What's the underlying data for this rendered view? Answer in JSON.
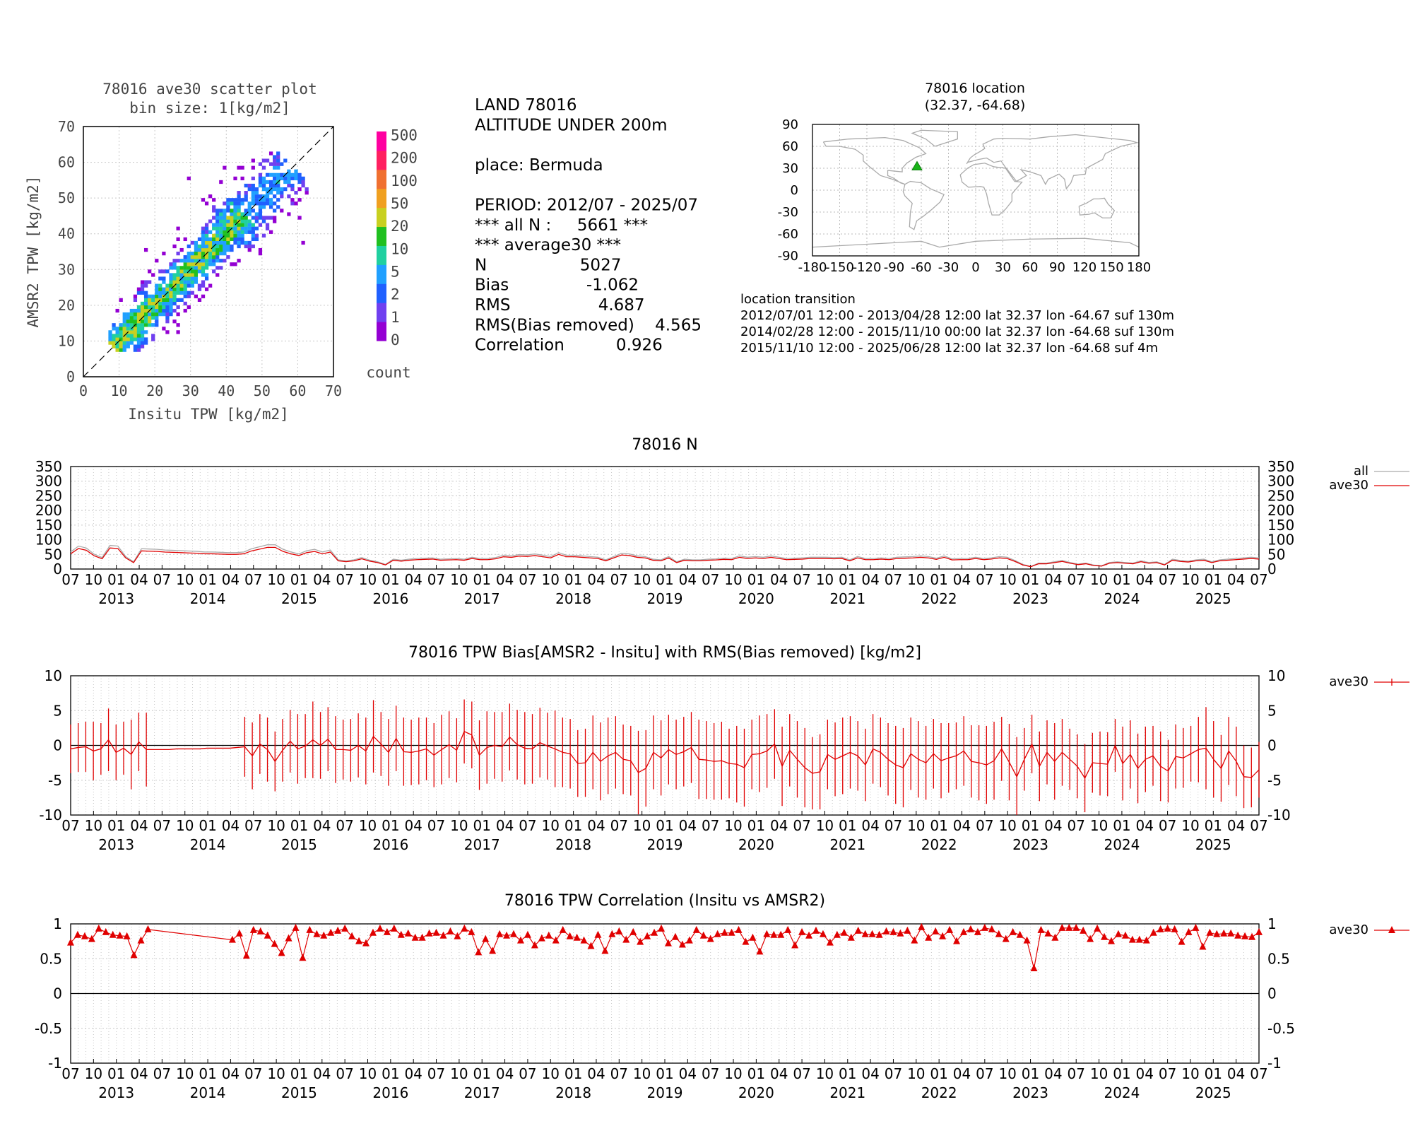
{
  "station": "78016",
  "scatter": {
    "title": "78016 ave30 scatter plot",
    "subtitle": "bin size: 1[kg/m2]",
    "xlabel": "Insitu TPW [kg/m2]",
    "ylabel": "AMSR2 TPW [kg/m2]",
    "ticks": [
      "0",
      "10",
      "20",
      "30",
      "40",
      "50",
      "60",
      "70"
    ],
    "colorbar_labels": [
      "0",
      "1",
      "2",
      "5",
      "10",
      "20",
      "50",
      "100",
      "200",
      "500"
    ],
    "colorbar_colors": [
      "#9400d3",
      "#7040f0",
      "#2060ff",
      "#20a0ff",
      "#20d0a0",
      "#20c020",
      "#c8d020",
      "#f0a020",
      "#f07030",
      "#ff2060",
      "#ff00a0"
    ],
    "colorbar_title": "count"
  },
  "info": {
    "lines": [
      "LAND 78016",
      "ALTITUDE UNDER 200m",
      "",
      "place: Bermuda",
      "",
      "PERIOD: 2012/07 - 2025/07",
      "*** all N :     5661 ***",
      "*** average30 ***",
      "N                  5027",
      "Bias               -1.062",
      "RMS                 4.687",
      "RMS(Bias removed)    4.565",
      "Correlation          0.926"
    ]
  },
  "location": {
    "title": "78016 location",
    "subtitle": "(32.37, -64.68)",
    "lat": 32.37,
    "lon": -64.68,
    "yticks": [
      "90",
      "60",
      "30",
      "0",
      "-30",
      "-60",
      "-90"
    ],
    "xticks": [
      "-180",
      "-150",
      "-120",
      "-90",
      "-60",
      "-30",
      "0",
      "30",
      "60",
      "90",
      "120",
      "150",
      "180"
    ],
    "transition_title": "location transition",
    "transitions": [
      "2012/07/01 12:00 - 2013/04/28 12:00 lat 32.37 lon -64.67 suf 130m",
      "2014/02/28 12:00 - 2015/11/10 00:00 lat 32.37 lon -64.68 suf 130m",
      "2015/11/10 12:00 - 2025/06/28 12:00 lat 32.37 lon -64.68 suf 4m"
    ]
  },
  "time_axis": {
    "month_labels": [
      "07",
      "10",
      "01",
      "04",
      "07",
      "10",
      "01",
      "04",
      "07",
      "10",
      "01",
      "04",
      "07",
      "10",
      "01",
      "04",
      "07",
      "10",
      "01",
      "04",
      "07",
      "10",
      "01",
      "04",
      "07",
      "10",
      "01",
      "04",
      "07",
      "10",
      "01",
      "04",
      "07",
      "10",
      "01",
      "04",
      "07",
      "10",
      "01",
      "04",
      "07",
      "10",
      "01",
      "04",
      "07",
      "10",
      "01",
      "04",
      "07",
      "10",
      "01",
      "04",
      "07"
    ],
    "year_labels": [
      "2013",
      "2014",
      "2015",
      "2016",
      "2017",
      "2018",
      "2019",
      "2020",
      "2021",
      "2022",
      "2023",
      "2024",
      "2025"
    ]
  },
  "chart_data": [
    {
      "type": "line",
      "title": "78016 N",
      "yticks": [
        "350",
        "300",
        "250",
        "200",
        "150",
        "100",
        "50",
        "0"
      ],
      "ylim": [
        0,
        350
      ],
      "x_start": "2012-07",
      "x_end": "2025-07",
      "legend": [
        "all",
        "ave30"
      ],
      "series": [
        {
          "name": "ave30",
          "color": "#e00000",
          "values": [
            52,
            70,
            64,
            45,
            35,
            72,
            70,
            38,
            22,
            62,
            61,
            60,
            58,
            57,
            56,
            55,
            54,
            52,
            52,
            51,
            50,
            50,
            52,
            62,
            68,
            74,
            74,
            60,
            52,
            46,
            56,
            60,
            52,
            58,
            28,
            25,
            28,
            35,
            27,
            22,
            14,
            30,
            27,
            30,
            32,
            33,
            34,
            30,
            31,
            32,
            30,
            36,
            32,
            32,
            35,
            42,
            40,
            44,
            43,
            46,
            42,
            38,
            50,
            42,
            42,
            40,
            38,
            36,
            28,
            38,
            48,
            46,
            40,
            38,
            30,
            28,
            38,
            22,
            30,
            28,
            28,
            30,
            31,
            33,
            32,
            40,
            36,
            38,
            36,
            40,
            36,
            32,
            33,
            34,
            36,
            36,
            36,
            35,
            36,
            28,
            38,
            32,
            32,
            34,
            32,
            36,
            37,
            38,
            40,
            38,
            33,
            40,
            31,
            32,
            32,
            36,
            32,
            34,
            38,
            36,
            26,
            14,
            8,
            18,
            18,
            22,
            26,
            20,
            15,
            18,
            12,
            10,
            20,
            22,
            20,
            18,
            25,
            20,
            22,
            14,
            30,
            26,
            24,
            28,
            30,
            22,
            28,
            30,
            32,
            34,
            36,
            34
          ]
        }
      ]
    },
    {
      "type": "line",
      "title": "78016 TPW Bias[AMSR2 - Insitu] with RMS(Bias removed) [kg/m2]",
      "yticks": [
        "10",
        "5",
        "0",
        "-5",
        "-10"
      ],
      "ylim": [
        -10,
        10
      ],
      "x_start": "2012-07",
      "x_end": "2025-07",
      "legend": [
        "ave30"
      ],
      "series": [
        {
          "name": "ave30",
          "color": "#e00000",
          "values": [
            -0.5,
            -0.3,
            -0.2,
            -0.8,
            -0.5,
            0.8,
            -1.0,
            -0.4,
            -1.3,
            0.5,
            -0.6,
            -0.6,
            -0.6,
            -0.6,
            -0.5,
            -0.5,
            -0.5,
            -0.5,
            -0.4,
            -0.4,
            -0.4,
            -0.4,
            -0.3,
            -0.2,
            -1.5,
            0.2,
            -0.6,
            -2.3,
            -0.7,
            0.6,
            -0.5,
            -0.1,
            0.8,
            0.0,
            0.9,
            -0.6,
            -0.6,
            -0.7,
            0.0,
            -0.8,
            1.3,
            0.2,
            -1.0,
            1.0,
            -0.9,
            -1.0,
            -0.8,
            -0.5,
            -1.4,
            -0.6,
            0.1,
            -0.7,
            2.0,
            1.5,
            -1.4,
            -0.3,
            0.0,
            -0.2,
            1.2,
            0.1,
            -0.4,
            -0.5,
            0.4,
            -0.1,
            -0.5,
            -1.0,
            -1.2,
            -2.6,
            -2.5,
            -1.0,
            -2.3,
            -1.5,
            -1.0,
            -2.0,
            -2.2,
            -3.9,
            -3.3,
            -1.0,
            -1.8,
            -0.6,
            -1.3,
            -0.9,
            -0.3,
            -2.0,
            -2.1,
            -2.3,
            -2.2,
            -2.6,
            -2.7,
            -3.2,
            -1.3,
            -1.2,
            -0.8,
            0.2,
            -3.0,
            -0.7,
            -2.0,
            -3.2,
            -4.0,
            -3.8,
            -1.3,
            -2.0,
            -1.5,
            -1.0,
            -1.5,
            -2.8,
            -0.5,
            -1.0,
            -2.0,
            -2.8,
            -3.2,
            -1.2,
            -2.0,
            -2.5,
            -1.2,
            -2.2,
            -1.8,
            -1.5,
            -0.8,
            -2.3,
            -2.5,
            -2.8,
            -2.2,
            -0.5,
            -2.4,
            -4.5,
            -2.0,
            0.2,
            -3.0,
            -1.0,
            -2.3,
            -1.0,
            -2.0,
            -3.0,
            -4.7,
            -2.5,
            -2.6,
            -2.7,
            0.0,
            -2.6,
            -1.3,
            -3.3,
            -2.0,
            -1.5,
            -3.0,
            -3.7,
            -1.6,
            -1.8,
            -1.2,
            -0.6,
            -0.4,
            -2.0,
            -3.3,
            -0.8,
            -2.3,
            -4.5,
            -4.6,
            -3.5
          ]
        },
        {
          "name": "rms_bias_removed",
          "values": [
            3.5,
            3.5,
            3.6,
            4.2,
            3.7,
            4.5,
            4.0,
            3.8,
            5.0,
            4.2,
            5.3,
            0,
            0,
            0,
            0,
            0,
            0,
            0,
            0,
            0,
            0,
            0,
            0,
            4.3,
            4.8,
            4.3,
            4.6,
            4.3,
            4.5,
            4.5,
            5.0,
            4.6,
            5.5,
            4.8,
            4.6,
            4.8,
            4.3,
            4.5,
            4.6,
            4.8,
            5.2,
            4.6,
            4.8,
            4.7,
            4.9,
            4.7,
            4.8,
            4.5,
            4.6,
            5.0,
            4.8,
            4.6,
            4.6,
            4.8,
            5.0,
            5.2,
            4.8,
            5.0,
            4.8,
            5.0,
            5.2,
            5.0,
            5.0,
            4.8,
            5.5,
            5.0,
            5.0,
            4.8,
            4.9,
            5.3,
            5.6,
            5.5,
            5.2,
            5.0,
            5.0,
            6.0,
            5.5,
            5.3,
            5.4,
            5.0,
            5.0,
            5.0,
            5.1,
            5.7,
            5.6,
            5.5,
            5.6,
            5.0,
            5.5,
            5.6,
            5.0,
            5.5,
            5.3,
            5.0,
            5.7,
            5.2,
            5.5,
            5.7,
            5.2,
            5.4,
            5.0,
            5.3,
            5.5,
            5.2,
            5.0,
            5.2,
            5.0,
            5.0,
            5.2,
            5.6,
            5.7,
            5.2,
            5.5,
            5.3,
            5.0,
            5.4,
            5.0,
            4.8,
            5.0,
            5.2,
            5.4,
            5.6,
            5.6,
            4.6,
            5.5,
            5.7,
            4.5,
            4.2,
            5.0,
            4.6,
            5.5,
            4.8,
            4.4,
            4.6,
            4.9,
            4.3,
            4.6,
            4.6,
            3.8,
            5.3,
            4.9,
            5.0,
            4.7,
            4.3,
            5.0,
            4.5,
            4.6,
            4.3,
            4.0,
            4.7,
            5.9,
            5.5,
            4.8,
            4.9,
            5.0,
            4.5,
            4.3,
            4.0,
            3.8
          ]
        }
      ]
    },
    {
      "type": "line",
      "title": "78016 TPW Correlation (Insitu vs AMSR2)",
      "yticks": [
        "1",
        "0.5",
        "0",
        "-0.5",
        "-1"
      ],
      "ylim": [
        -1,
        1
      ],
      "x_start": "2012-07",
      "x_end": "2025-07",
      "legend": [
        "ave30"
      ],
      "series": [
        {
          "name": "ave30",
          "color": "#e00000",
          "values": [
            0.73,
            0.84,
            0.82,
            0.78,
            0.93,
            0.88,
            0.84,
            0.83,
            0.82,
            0.55,
            0.76,
            0.92,
            null,
            null,
            null,
            null,
            null,
            null,
            null,
            null,
            null,
            null,
            null,
            0.77,
            0.86,
            0.54,
            0.91,
            0.89,
            0.83,
            0.71,
            0.58,
            0.79,
            0.94,
            0.51,
            0.91,
            0.85,
            0.83,
            0.87,
            0.9,
            0.93,
            0.82,
            0.75,
            0.72,
            0.87,
            0.93,
            0.88,
            0.93,
            0.84,
            0.86,
            0.8,
            0.8,
            0.86,
            0.87,
            0.83,
            0.89,
            0.82,
            0.93,
            0.88,
            0.59,
            0.78,
            0.61,
            0.85,
            0.83,
            0.85,
            0.76,
            0.84,
            0.69,
            0.79,
            0.83,
            0.76,
            0.91,
            0.82,
            0.8,
            0.76,
            0.68,
            0.84,
            0.61,
            0.85,
            0.89,
            0.77,
            0.88,
            0.74,
            0.82,
            0.87,
            0.93,
            0.72,
            0.81,
            0.7,
            0.76,
            0.91,
            0.83,
            0.78,
            0.85,
            0.87,
            0.87,
            0.91,
            0.74,
            0.8,
            0.6,
            0.85,
            0.84,
            0.84,
            0.91,
            0.69,
            0.88,
            0.83,
            0.9,
            0.85,
            0.73,
            0.84,
            0.87,
            0.8,
            0.9,
            0.85,
            0.85,
            0.84,
            0.89,
            0.88,
            0.86,
            0.9,
            0.76,
            0.95,
            0.8,
            0.89,
            0.82,
            0.91,
            0.75,
            0.88,
            0.92,
            0.88,
            0.94,
            0.92,
            0.85,
            0.78,
            0.88,
            0.84,
            0.76,
            0.36,
            0.91,
            0.86,
            0.8,
            0.94,
            0.94,
            0.94,
            0.9,
            0.78,
            0.93,
            0.81,
            0.75,
            0.85,
            0.83,
            0.77,
            0.77,
            0.76,
            0.87,
            0.92,
            0.93,
            0.92,
            0.74,
            0.88,
            0.94,
            0.67,
            0.87,
            0.85,
            0.86,
            0.86,
            0.83,
            0.82,
            0.81,
            0.88
          ]
        }
      ]
    }
  ]
}
